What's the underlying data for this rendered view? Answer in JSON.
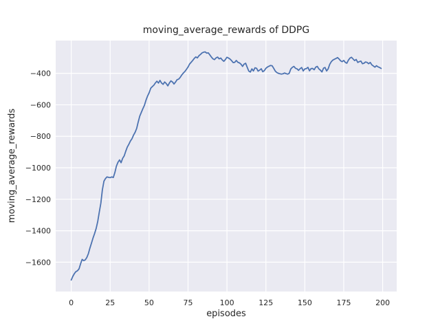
{
  "chart_data": {
    "type": "line",
    "title": "moving_average_rewards of DDPG",
    "xlabel": "episodes",
    "ylabel": "moving_average_rewards",
    "legend": null,
    "grid": true,
    "style": "seaborn-darkgrid",
    "xlim": [
      -10,
      209
    ],
    "ylim": [
      -1786,
      -192
    ],
    "xticks": [
      0,
      25,
      50,
      75,
      100,
      125,
      150,
      175,
      200
    ],
    "xtick_labels": [
      "0",
      "25",
      "50",
      "75",
      "100",
      "125",
      "150",
      "175",
      "200"
    ],
    "yticks": [
      -400,
      -600,
      -800,
      -1000,
      -1200,
      -1400,
      -1600
    ],
    "ytick_labels": [
      "−400",
      "−600",
      "−800",
      "−1000",
      "−1200",
      "−1400",
      "−1600"
    ],
    "series": [
      {
        "name": "moving_average_rewards",
        "color": "#4c72b0",
        "x": {
          "start": 0,
          "step": 1,
          "count": 200
        },
        "values": [
          -1713,
          -1690,
          -1672,
          -1660,
          -1654,
          -1642,
          -1610,
          -1582,
          -1590,
          -1585,
          -1570,
          -1545,
          -1510,
          -1478,
          -1445,
          -1418,
          -1385,
          -1340,
          -1282,
          -1225,
          -1140,
          -1085,
          -1068,
          -1058,
          -1061,
          -1063,
          -1058,
          -1062,
          -1030,
          -990,
          -965,
          -950,
          -968,
          -940,
          -924,
          -895,
          -868,
          -851,
          -830,
          -815,
          -793,
          -775,
          -750,
          -710,
          -672,
          -648,
          -625,
          -603,
          -570,
          -545,
          -524,
          -495,
          -485,
          -476,
          -462,
          -450,
          -462,
          -445,
          -462,
          -470,
          -455,
          -465,
          -480,
          -462,
          -448,
          -455,
          -468,
          -455,
          -440,
          -437,
          -425,
          -410,
          -398,
          -388,
          -375,
          -360,
          -341,
          -330,
          -318,
          -305,
          -296,
          -302,
          -288,
          -280,
          -270,
          -266,
          -264,
          -272,
          -270,
          -283,
          -297,
          -308,
          -313,
          -302,
          -297,
          -308,
          -303,
          -315,
          -324,
          -312,
          -298,
          -303,
          -310,
          -320,
          -332,
          -330,
          -318,
          -330,
          -334,
          -342,
          -356,
          -342,
          -336,
          -362,
          -385,
          -392,
          -372,
          -385,
          -365,
          -368,
          -386,
          -380,
          -371,
          -390,
          -383,
          -368,
          -360,
          -355,
          -350,
          -352,
          -368,
          -385,
          -395,
          -400,
          -403,
          -405,
          -403,
          -398,
          -402,
          -405,
          -400,
          -372,
          -362,
          -356,
          -368,
          -372,
          -381,
          -370,
          -363,
          -385,
          -372,
          -370,
          -362,
          -384,
          -370,
          -369,
          -377,
          -361,
          -356,
          -372,
          -380,
          -391,
          -367,
          -363,
          -385,
          -372,
          -343,
          -326,
          -316,
          -311,
          -306,
          -300,
          -309,
          -321,
          -326,
          -318,
          -331,
          -336,
          -316,
          -303,
          -298,
          -309,
          -319,
          -312,
          -331,
          -326,
          -322,
          -339,
          -336,
          -328,
          -331,
          -339,
          -331,
          -346,
          -353,
          -361,
          -352,
          -359,
          -363,
          -369
        ]
      }
    ],
    "colors": {
      "figure_bg": "#ffffff",
      "axes_bg": "#eaeaf2",
      "grid": "#ffffff",
      "text": "#262626"
    }
  }
}
